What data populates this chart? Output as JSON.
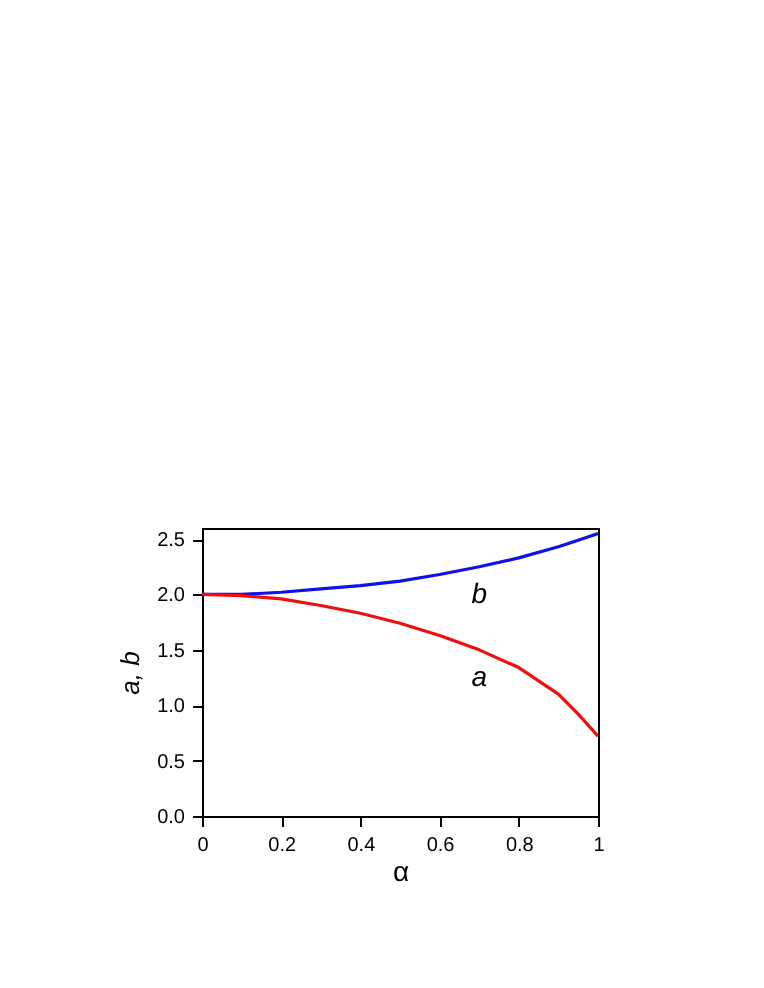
{
  "chart_data": {
    "type": "line",
    "xlabel": "α",
    "ylabel": "a, b",
    "x": [
      0,
      0.1,
      0.2,
      0.3,
      0.4,
      0.5,
      0.6,
      0.7,
      0.8,
      0.9,
      0.95,
      1.0
    ],
    "series": [
      {
        "name": "b",
        "color": "#1010ee",
        "values": [
          2.0,
          2.0,
          2.02,
          2.05,
          2.08,
          2.12,
          2.18,
          2.25,
          2.33,
          2.43,
          2.49,
          2.55
        ]
      },
      {
        "name": "a",
        "color": "#ee1010",
        "values": [
          2.0,
          1.99,
          1.96,
          1.9,
          1.83,
          1.74,
          1.63,
          1.5,
          1.34,
          1.1,
          0.92,
          0.72
        ]
      }
    ],
    "xlim": [
      0,
      1
    ],
    "xticks": [
      0,
      0.2,
      0.4,
      0.6,
      0.8,
      1
    ],
    "ylim": [
      0,
      2.6
    ],
    "yticks": [
      {
        "value": 0,
        "label": "0.0"
      },
      {
        "value": 0.5,
        "label": "0.5"
      },
      {
        "value": 1,
        "label": "1.0"
      },
      {
        "value": 1.5,
        "label": "1.5"
      },
      {
        "value": 2,
        "label": "2.0"
      },
      {
        "value": 2.5,
        "label": "2.5"
      }
    ],
    "grid": false,
    "legend": false,
    "marker": "none",
    "line_style": "solid"
  }
}
